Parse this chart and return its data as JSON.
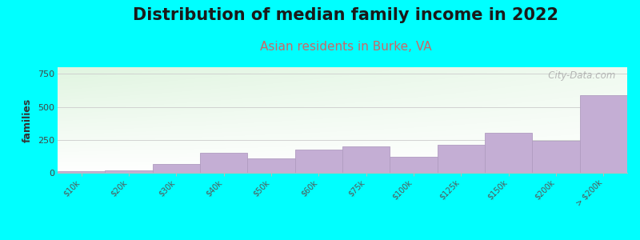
{
  "title": "Distribution of median family income in 2022",
  "subtitle": "Asian residents in Burke, VA",
  "ylabel": "families",
  "bg_color": "#00FFFF",
  "bar_color": "#c4aed4",
  "bar_edge_color": "#b09cc0",
  "categories": [
    "$10k",
    "$20k",
    "$30k",
    "$40k",
    "$50k",
    "$60k",
    "$75k",
    "$100k",
    "$125k",
    "$150k",
    "$200k",
    "> $200k"
  ],
  "values": [
    10,
    20,
    65,
    150,
    110,
    175,
    200,
    120,
    215,
    305,
    240,
    585
  ],
  "ylim": [
    0,
    800
  ],
  "yticks": [
    0,
    250,
    500,
    750
  ],
  "watermark": "   City-Data.com",
  "title_fontsize": 15,
  "subtitle_fontsize": 11,
  "ylabel_fontsize": 9
}
